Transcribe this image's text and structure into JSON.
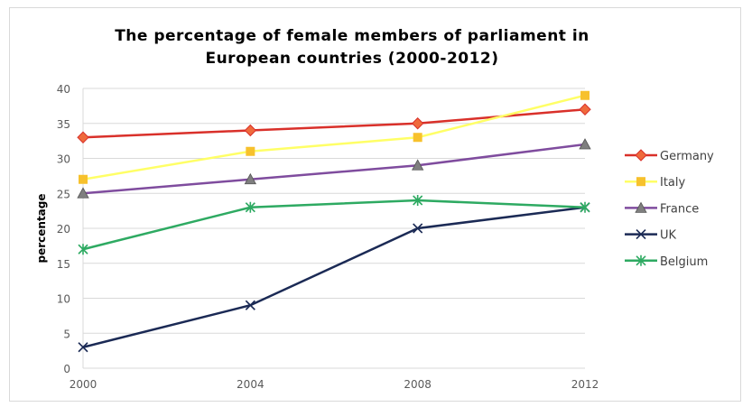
{
  "chart_data": {
    "type": "line",
    "title": "The percentage of female members of parliament in European countries (2000-2012)",
    "title_lines": [
      "The percentage of female members of parliament in",
      "European countries (2000-2012)"
    ],
    "xlabel": "",
    "ylabel": "percentage",
    "x": [
      "2000",
      "2004",
      "2008",
      "2012"
    ],
    "ylim": [
      0,
      40
    ],
    "yticks": [
      "0",
      "5",
      "10",
      "15",
      "20",
      "25",
      "30",
      "35",
      "40"
    ],
    "grid": true,
    "legend_position": "right",
    "series": [
      {
        "name": "Germany",
        "values": [
          33,
          34,
          35,
          37
        ],
        "color": "#d9302a",
        "marker": "diamond",
        "marker_color": "#ef6a3c"
      },
      {
        "name": "Italy",
        "values": [
          27,
          31,
          33,
          39
        ],
        "color": "#ffff66",
        "marker": "square",
        "marker_color": "#f7c12c"
      },
      {
        "name": "France",
        "values": [
          25,
          27,
          29,
          32
        ],
        "color": "#7f4c9e",
        "marker": "triangle",
        "marker_color": "#7f7f7f"
      },
      {
        "name": "UK",
        "values": [
          3,
          9,
          20,
          23
        ],
        "color": "#1b2a55",
        "marker": "x",
        "marker_color": "#1b2a55"
      },
      {
        "name": "Belgium",
        "values": [
          17,
          23,
          24,
          23
        ],
        "color": "#2eaa62",
        "marker": "star",
        "marker_color": "#2eaa62"
      }
    ]
  }
}
